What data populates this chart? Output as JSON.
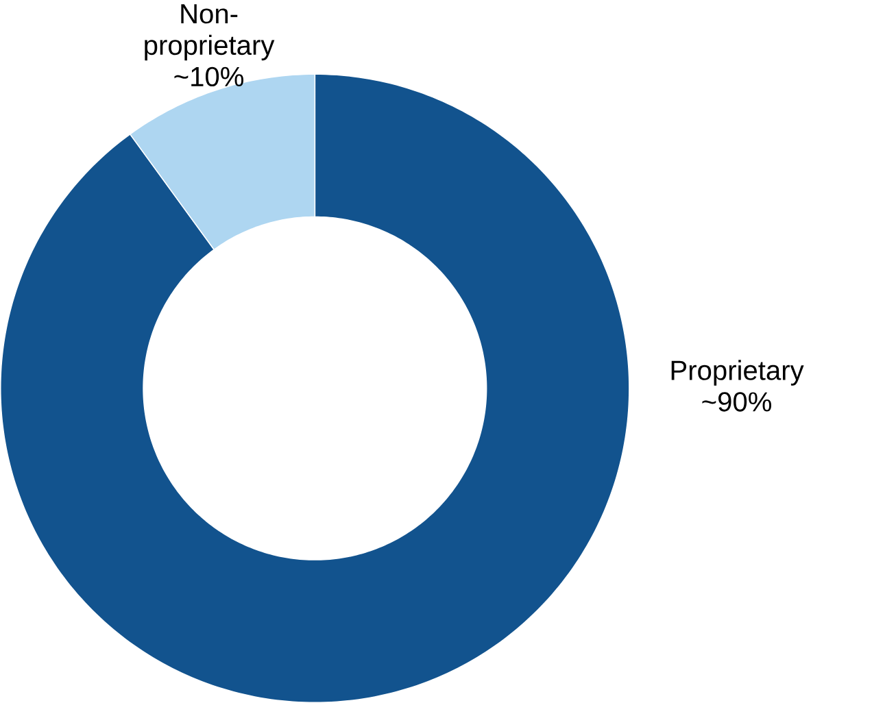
{
  "chart_data": {
    "type": "donut",
    "categories": [
      "Proprietary",
      "Non-proprietary"
    ],
    "values": [
      90,
      10
    ],
    "value_labels": [
      "~90%",
      "~10%"
    ],
    "colors": [
      "#12538e",
      "#aed6f1"
    ]
  }
}
